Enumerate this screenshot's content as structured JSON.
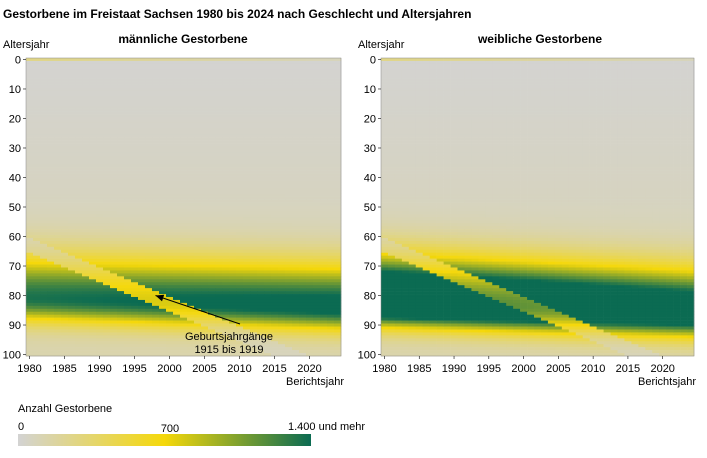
{
  "title": "Gestorbene im Freistaat Sachsen 1980 bis 2024 nach Geschlecht und Altersjahren",
  "colors": {
    "low": "#d3d3d3",
    "mid": "#f5d80a",
    "high": "#0b6b52",
    "background": "#ffffff"
  },
  "chart_data": [
    {
      "type": "heatmap",
      "title": "männliche Gestorbene",
      "ylabel": "Altersjahr",
      "xlabel": "Berichtsjahr",
      "xlim": [
        1980,
        2024
      ],
      "ylim": [
        0,
        100
      ],
      "x_ticks": [
        1980,
        1985,
        1990,
        1995,
        2000,
        2005,
        2010,
        2015,
        2020
      ],
      "y_ticks": [
        0,
        10,
        20,
        30,
        40,
        50,
        60,
        70,
        80,
        90,
        100
      ],
      "value_range": [
        0,
        1400
      ],
      "peak_band": {
        "centre_age_start": 81,
        "centre_age_end": 84,
        "peak_value_start": 1250,
        "peak_value_end": 1400
      },
      "gap_cohort": {
        "birth_years": [
          1915,
          1919
        ]
      },
      "annotation": {
        "line1": "Geburtsjahrgänge",
        "line2": "1915 bis 1919",
        "target_year": 1998,
        "target_age": 80
      }
    },
    {
      "type": "heatmap",
      "title": "weibliche Gestorbene",
      "ylabel": "Altersjahr",
      "xlabel": "Berichtsjahr",
      "xlim": [
        1980,
        2024
      ],
      "ylim": [
        0,
        100
      ],
      "x_ticks": [
        1980,
        1985,
        1990,
        1995,
        2000,
        2005,
        2010,
        2015,
        2020
      ],
      "y_ticks": [
        0,
        10,
        20,
        30,
        40,
        50,
        60,
        70,
        80,
        90,
        100
      ],
      "value_range": [
        0,
        1400
      ],
      "peak_band": {
        "centre_age_start": 82,
        "centre_age_end": 86,
        "peak_value_start": 2200,
        "peak_value_end": 1700
      },
      "gap_cohort": {
        "birth_years": [
          1915,
          1919
        ]
      }
    }
  ],
  "legend": {
    "title": "Anzahl Gestorbene",
    "labels": [
      "0",
      "700",
      "1.400 und mehr"
    ],
    "values": [
      0,
      700,
      1400
    ]
  }
}
